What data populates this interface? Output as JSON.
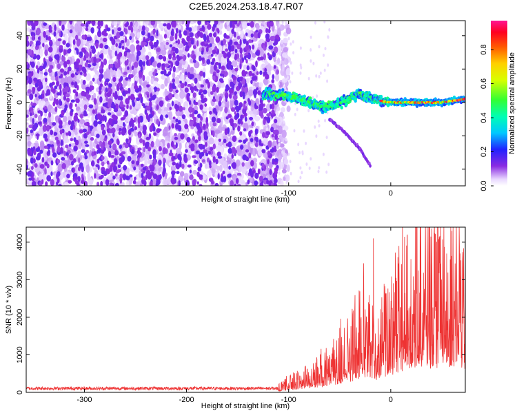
{
  "title": "C2E5.2024.253.18.47.R07",
  "chart_data": [
    {
      "type": "heatmap",
      "xlabel": "Height of straight line (km)",
      "ylabel": "Frequency (Hz)",
      "xlim": [
        -357,
        73
      ],
      "ylim": [
        -50,
        49
      ],
      "xticks": [
        -300,
        -200,
        -100,
        0
      ],
      "yticks": [
        -40,
        -20,
        0,
        20,
        40
      ],
      "colorbar": {
        "label": "Normalized spectral amplitude",
        "range": [
          0,
          0.97
        ],
        "ticks": [
          "0.0",
          "0.2",
          "0.4",
          "0.6",
          "0.8"
        ],
        "tick_values": [
          0,
          0.2,
          0.4,
          0.6,
          0.8
        ],
        "colormap": "rainbow (violet→blue→cyan→green→yellow→orange→red→magenta)"
      },
      "features": {
        "noise_region_x": [
          -357,
          -110
        ],
        "signal_track": [
          {
            "x": -125,
            "y": 5
          },
          {
            "x": -100,
            "y": 4
          },
          {
            "x": -80,
            "y": 0
          },
          {
            "x": -65,
            "y": -3
          },
          {
            "x": -50,
            "y": 0
          },
          {
            "x": -30,
            "y": 5
          },
          {
            "x": -10,
            "y": 1
          },
          {
            "x": 0,
            "y": 0
          },
          {
            "x": 20,
            "y": 0
          },
          {
            "x": 50,
            "y": 0
          },
          {
            "x": 73,
            "y": 2
          }
        ],
        "descending_branch": [
          {
            "x": -60,
            "y": -10
          },
          {
            "x": -45,
            "y": -18
          },
          {
            "x": -30,
            "y": -28
          },
          {
            "x": -20,
            "y": -38
          }
        ]
      }
    },
    {
      "type": "line",
      "xlabel": "Height of straight line (km)",
      "ylabel": "SNR (10 * v/v)",
      "xlim": [
        -357,
        73
      ],
      "ylim": [
        0,
        4400
      ],
      "xticks": [
        -300,
        -200,
        -100,
        0
      ],
      "yticks": [
        0,
        1000,
        2000,
        3000,
        4000
      ],
      "series_color": "#ee3333",
      "envelope": [
        {
          "x": -357,
          "y": 80
        },
        {
          "x": -200,
          "y": 90
        },
        {
          "x": -110,
          "y": 100
        },
        {
          "x": -100,
          "y": 250
        },
        {
          "x": -80,
          "y": 400
        },
        {
          "x": -60,
          "y": 650
        },
        {
          "x": -40,
          "y": 1100
        },
        {
          "x": -25,
          "y": 1600
        },
        {
          "x": -15,
          "y": 1300
        },
        {
          "x": 0,
          "y": 1700
        },
        {
          "x": 20,
          "y": 2600
        },
        {
          "x": 40,
          "y": 2500
        },
        {
          "x": 60,
          "y": 2700
        },
        {
          "x": 73,
          "y": 2400
        }
      ],
      "peaks": [
        {
          "x": -17,
          "y": 4100
        },
        {
          "x": 7,
          "y": 3600
        },
        {
          "x": 48,
          "y": 4100
        },
        {
          "x": 60,
          "y": 4300
        },
        {
          "x": 68,
          "y": 3700
        }
      ]
    }
  ]
}
